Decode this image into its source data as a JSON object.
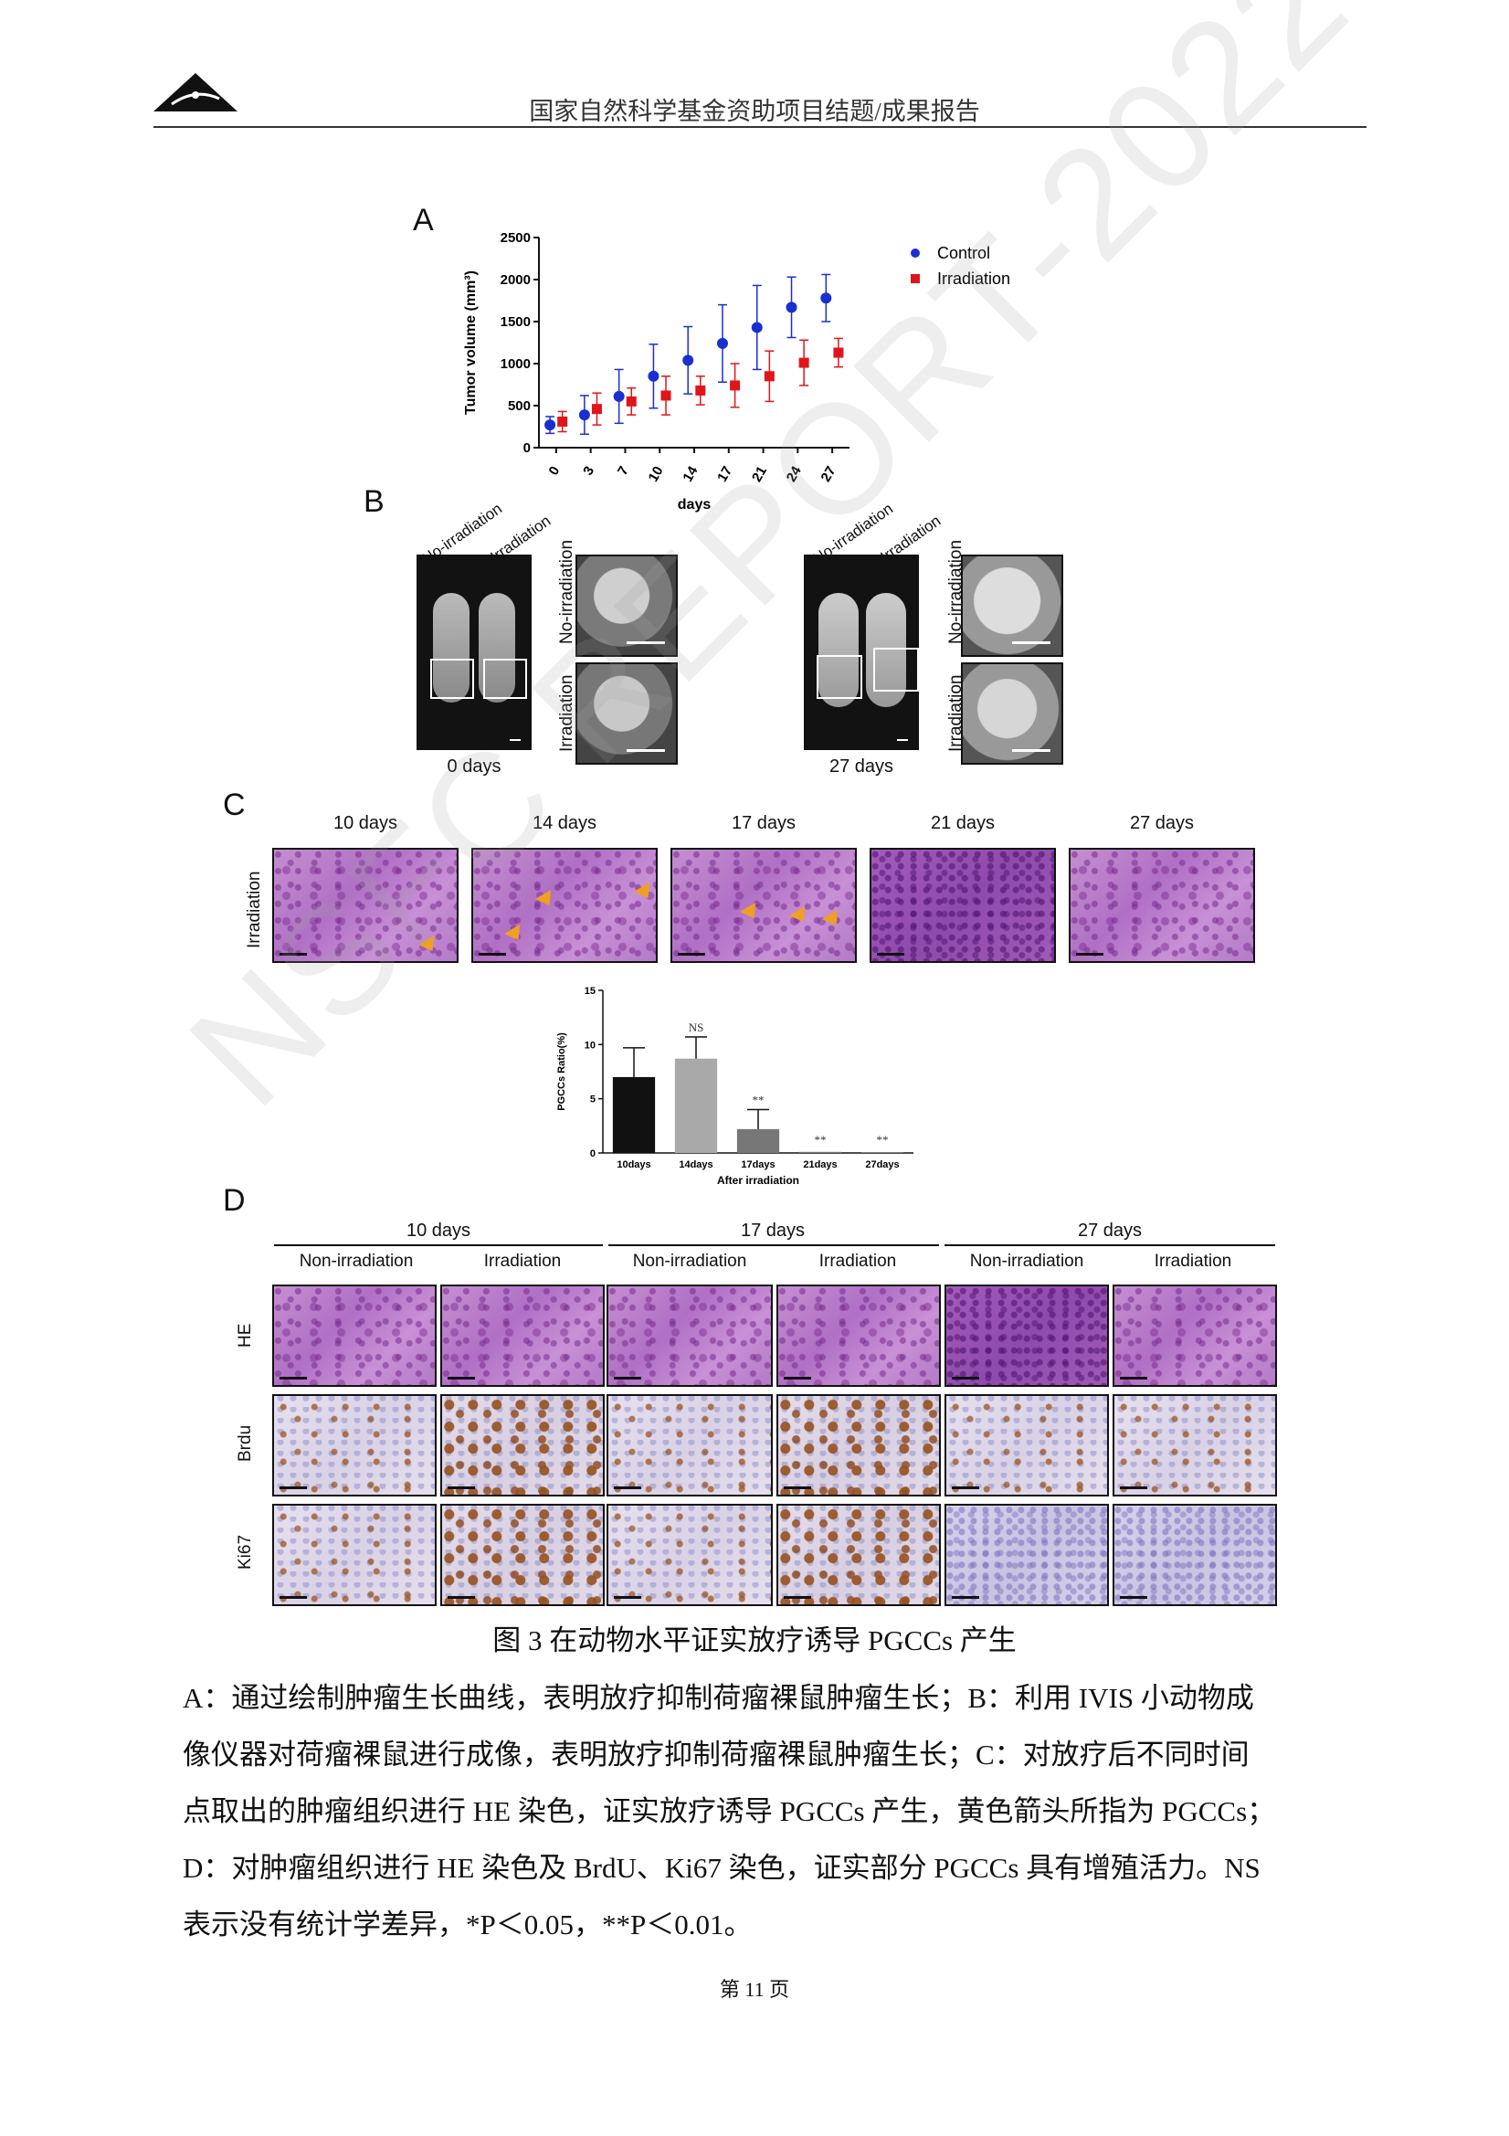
{
  "header": {
    "title": "国家自然科学基金资助项目结题/成果报告"
  },
  "watermark": "NSFC REPORT-2022",
  "panel_letters": [
    "A",
    "B",
    "C",
    "D"
  ],
  "panelA": {
    "chart_data": {
      "type": "scatter",
      "categories": [
        "0",
        "3",
        "7",
        "10",
        "14",
        "17",
        "21",
        "24",
        "27"
      ],
      "xlabel": "days",
      "ylabel": "Tumor volume (mm³)",
      "ylim": [
        0,
        2500
      ],
      "yticks": [
        "0",
        "500",
        "1000",
        "1500",
        "2000",
        "2500"
      ],
      "legend": "top-right",
      "series": [
        {
          "name": "Control",
          "color": "#1a2fd0",
          "marker": "circle",
          "values": [
            270,
            390,
            610,
            850,
            1040,
            1240,
            1430,
            1670,
            1780
          ],
          "err": [
            100,
            230,
            320,
            380,
            400,
            460,
            500,
            360,
            280
          ]
        },
        {
          "name": "Irradiation",
          "color": "#e0151b",
          "marker": "square",
          "values": [
            310,
            460,
            550,
            620,
            680,
            740,
            850,
            1010,
            1130
          ],
          "err": [
            120,
            190,
            160,
            230,
            170,
            260,
            300,
            270,
            170
          ]
        }
      ]
    }
  },
  "panelB": {
    "left_group": {
      "top_labels": [
        "No-irradiation",
        "Irradiation"
      ],
      "side_labels": [
        "No-irradiation",
        "Irradiation"
      ],
      "caption": "0 days"
    },
    "right_group": {
      "top_labels": [
        "No-irradiation",
        "Irradiation"
      ],
      "side_labels": [
        "No-irradiation",
        "Irradiation"
      ],
      "caption": "27 days"
    }
  },
  "panelC": {
    "row_label": "Irradiation",
    "days": [
      "10 days",
      "14 days",
      "17 days",
      "21 days",
      "27 days"
    ],
    "bar_chart": {
      "chart_data": {
        "type": "bar",
        "categories": [
          "10days",
          "14days",
          "17days",
          "21days",
          "27days"
        ],
        "values": [
          7.0,
          8.7,
          2.2,
          0.1,
          0.05
        ],
        "err": [
          2.7,
          2.0,
          1.8,
          0,
          0
        ],
        "annotations": [
          "",
          "NS",
          "**",
          "**",
          "**"
        ],
        "colors": [
          "#111111",
          "#a9a9a9",
          "#777777",
          "#777777",
          "#777777"
        ],
        "ylabel": "PGCCs Ratio(%)",
        "xlabel": "After irradiation",
        "ylim": [
          0,
          15
        ],
        "yticks": [
          "0",
          "5",
          "10",
          "15"
        ]
      }
    }
  },
  "panelD": {
    "groups": [
      "10 days",
      "17 days",
      "27 days"
    ],
    "sub": [
      "Non-irradiation",
      "Irradiation"
    ],
    "rows": [
      "HE",
      "Brdu",
      "Ki67"
    ]
  },
  "caption": "图 3 在动物水平证实放疗诱导 PGCCs 产生",
  "paragraph": [
    "A：通过绘制肿瘤生长曲线，表明放疗抑制荷瘤裸鼠肿瘤生长；B：利用 IVIS 小动物成",
    "像仪器对荷瘤裸鼠进行成像，表明放疗抑制荷瘤裸鼠肿瘤生长；C：对放疗后不同时间",
    "点取出的肿瘤组织进行 HE 染色，证实放疗诱导 PGCCs 产生，黄色箭头所指为 PGCCs；",
    "D：对肿瘤组织进行 HE 染色及 BrdU、Ki67 染色，证实部分 PGCCs 具有增殖活力。NS",
    "表示没有统计学差异，*P＜0.05，**P＜0.01。"
  ],
  "footer": "第 11 页"
}
